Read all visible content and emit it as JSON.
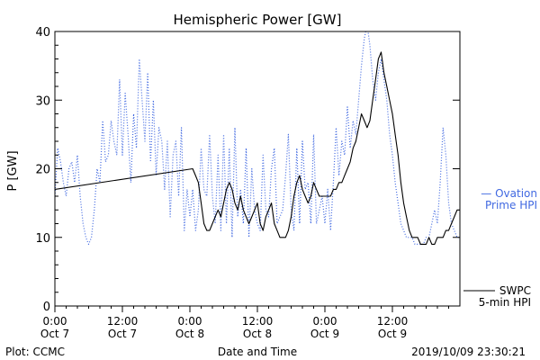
{
  "chart_data": {
    "type": "line",
    "title": "Hemispheric Power [GW]",
    "xlabel": "Date and Time",
    "ylabel": "P [GW]",
    "ylim": [
      0,
      40
    ],
    "xlim_hours": [
      0,
      72
    ],
    "x_ticks": [
      {
        "hour": 0,
        "line1": "0:00",
        "line2": "Oct 7"
      },
      {
        "hour": 12,
        "line1": "12:00",
        "line2": "Oct 7"
      },
      {
        "hour": 24,
        "line1": "0:00",
        "line2": "Oct 8"
      },
      {
        "hour": 36,
        "line1": "12:00",
        "line2": "Oct 8"
      },
      {
        "hour": 48,
        "line1": "0:00",
        "line2": "Oct 9"
      },
      {
        "hour": 60,
        "line1": "12:00",
        "line2": "Oct 9"
      }
    ],
    "y_ticks": [
      0,
      10,
      20,
      30,
      40
    ],
    "grid": false,
    "series": [
      {
        "name": "SWPC 5-min HPI",
        "legend_line1": "SWPC",
        "legend_line2": "5-min HPI",
        "color": "#000000",
        "style": "solid",
        "points": [
          [
            0,
            17
          ],
          [
            24.5,
            20
          ],
          [
            25,
            19
          ],
          [
            25.5,
            18
          ],
          [
            26,
            15
          ],
          [
            26.5,
            12
          ],
          [
            27,
            11
          ],
          [
            27.5,
            11
          ],
          [
            28,
            12
          ],
          [
            28.5,
            13
          ],
          [
            29,
            14
          ],
          [
            29.5,
            13
          ],
          [
            30,
            15
          ],
          [
            30.5,
            17
          ],
          [
            31,
            18
          ],
          [
            31.5,
            17
          ],
          [
            32,
            15
          ],
          [
            32.5,
            14
          ],
          [
            33,
            16
          ],
          [
            33.5,
            14
          ],
          [
            34,
            13
          ],
          [
            34.5,
            12
          ],
          [
            35,
            13
          ],
          [
            35.5,
            14
          ],
          [
            36,
            15
          ],
          [
            36.5,
            12
          ],
          [
            37,
            11
          ],
          [
            37.5,
            13
          ],
          [
            38,
            14
          ],
          [
            38.5,
            15
          ],
          [
            39,
            12
          ],
          [
            39.5,
            11
          ],
          [
            40,
            10
          ],
          [
            41,
            10
          ],
          [
            41.5,
            11
          ],
          [
            42,
            13
          ],
          [
            42.5,
            16
          ],
          [
            43,
            18
          ],
          [
            43.5,
            19
          ],
          [
            44,
            17
          ],
          [
            44.5,
            16
          ],
          [
            45,
            15
          ],
          [
            45.5,
            16
          ],
          [
            46,
            18
          ],
          [
            46.5,
            17
          ],
          [
            47,
            16
          ],
          [
            48,
            16
          ],
          [
            49,
            16
          ],
          [
            49.5,
            17
          ],
          [
            50,
            17
          ],
          [
            50.5,
            18
          ],
          [
            51,
            18
          ],
          [
            51.5,
            19
          ],
          [
            52,
            20
          ],
          [
            52.5,
            21
          ],
          [
            53,
            23
          ],
          [
            53.5,
            24
          ],
          [
            54,
            26
          ],
          [
            54.5,
            28
          ],
          [
            55,
            27
          ],
          [
            55.5,
            26
          ],
          [
            56,
            27
          ],
          [
            56.5,
            30
          ],
          [
            57,
            33
          ],
          [
            57.5,
            36
          ],
          [
            58,
            37
          ],
          [
            58.5,
            34
          ],
          [
            59,
            32
          ],
          [
            59.5,
            30
          ],
          [
            60,
            28
          ],
          [
            60.5,
            25
          ],
          [
            61,
            22
          ],
          [
            61.5,
            18
          ],
          [
            62,
            15
          ],
          [
            62.5,
            13
          ],
          [
            63,
            11
          ],
          [
            63.5,
            10
          ],
          [
            64,
            10
          ],
          [
            64.5,
            10
          ],
          [
            65,
            9
          ],
          [
            66,
            9
          ],
          [
            66.5,
            10
          ],
          [
            67,
            9
          ],
          [
            67.5,
            9
          ],
          [
            68,
            10
          ],
          [
            69,
            10
          ],
          [
            69.5,
            11
          ],
          [
            70,
            11
          ],
          [
            70.5,
            12
          ],
          [
            71,
            13
          ],
          [
            71.5,
            14
          ],
          [
            72,
            14
          ]
        ]
      },
      {
        "name": "Ovation Prime HPI",
        "legend_line1": "— Ovation",
        "legend_line2": "Prime HPI",
        "color": "#4169e1",
        "style": "dotted",
        "points": [
          [
            0,
            16
          ],
          [
            0.5,
            23
          ],
          [
            1,
            21
          ],
          [
            1.5,
            18
          ],
          [
            2,
            16
          ],
          [
            2.5,
            20
          ],
          [
            3,
            21
          ],
          [
            3.5,
            18
          ],
          [
            4,
            22
          ],
          [
            4.5,
            16
          ],
          [
            5,
            12
          ],
          [
            5.5,
            10
          ],
          [
            6,
            9
          ],
          [
            6.5,
            10
          ],
          [
            7,
            14
          ],
          [
            7.5,
            20
          ],
          [
            8,
            18
          ],
          [
            8.5,
            27
          ],
          [
            9,
            21
          ],
          [
            9.5,
            22
          ],
          [
            10,
            27
          ],
          [
            10.5,
            24
          ],
          [
            11,
            22
          ],
          [
            11.5,
            33
          ],
          [
            12,
            22
          ],
          [
            12.5,
            31
          ],
          [
            13,
            25
          ],
          [
            13.5,
            18
          ],
          [
            14,
            28
          ],
          [
            14.5,
            23
          ],
          [
            15,
            36
          ],
          [
            15.5,
            30
          ],
          [
            16,
            24
          ],
          [
            16.5,
            34
          ],
          [
            17,
            21
          ],
          [
            17.5,
            30
          ],
          [
            18,
            19
          ],
          [
            18.5,
            26
          ],
          [
            19,
            24
          ],
          [
            19.5,
            17
          ],
          [
            20,
            24
          ],
          [
            20.5,
            13
          ],
          [
            21,
            22
          ],
          [
            21.5,
            24
          ],
          [
            22,
            16
          ],
          [
            22.5,
            26
          ],
          [
            23,
            11
          ],
          [
            23.5,
            17
          ],
          [
            24,
            13
          ],
          [
            24.5,
            17
          ],
          [
            25,
            11
          ],
          [
            25.5,
            14
          ],
          [
            26,
            23
          ],
          [
            26.5,
            17
          ],
          [
            27,
            16
          ],
          [
            27.5,
            25
          ],
          [
            28,
            16
          ],
          [
            28.5,
            12
          ],
          [
            29,
            22
          ],
          [
            29.5,
            11
          ],
          [
            30,
            25
          ],
          [
            30.5,
            12
          ],
          [
            31,
            23
          ],
          [
            31.5,
            10
          ],
          [
            32,
            26
          ],
          [
            32.5,
            13
          ],
          [
            33,
            17
          ],
          [
            33.5,
            12
          ],
          [
            34,
            23
          ],
          [
            34.5,
            10
          ],
          [
            35,
            20
          ],
          [
            35.5,
            14
          ],
          [
            36,
            12
          ],
          [
            36.5,
            11
          ],
          [
            37,
            22
          ],
          [
            37.5,
            14
          ],
          [
            38,
            13
          ],
          [
            38.5,
            20
          ],
          [
            39,
            23
          ],
          [
            39.5,
            12
          ],
          [
            40,
            13
          ],
          [
            40.5,
            14
          ],
          [
            41,
            19
          ],
          [
            41.5,
            25
          ],
          [
            42,
            14
          ],
          [
            42.5,
            11
          ],
          [
            43,
            23
          ],
          [
            43.5,
            12
          ],
          [
            44,
            24
          ],
          [
            44.5,
            17
          ],
          [
            45,
            18
          ],
          [
            45.5,
            12
          ],
          [
            46,
            25
          ],
          [
            46.5,
            12
          ],
          [
            47,
            14
          ],
          [
            47.5,
            16
          ],
          [
            48,
            12
          ],
          [
            48.5,
            17
          ],
          [
            49,
            11
          ],
          [
            49.5,
            18
          ],
          [
            50,
            26
          ],
          [
            50.5,
            19
          ],
          [
            51,
            24
          ],
          [
            51.5,
            22
          ],
          [
            52,
            29
          ],
          [
            52.5,
            23
          ],
          [
            53,
            27
          ],
          [
            53.5,
            25
          ],
          [
            54,
            30
          ],
          [
            54.5,
            35
          ],
          [
            55,
            39
          ],
          [
            55.5,
            41
          ],
          [
            56,
            38
          ],
          [
            56.5,
            33
          ],
          [
            57,
            30
          ],
          [
            57.5,
            34
          ],
          [
            58,
            36
          ],
          [
            58.5,
            33
          ],
          [
            59,
            30
          ],
          [
            59.5,
            25
          ],
          [
            60,
            22
          ],
          [
            60.5,
            18
          ],
          [
            61,
            15
          ],
          [
            61.5,
            12
          ],
          [
            62,
            11
          ],
          [
            62.5,
            10
          ],
          [
            63,
            10
          ],
          [
            63.5,
            10
          ],
          [
            64,
            9
          ],
          [
            64.5,
            9
          ],
          [
            65,
            9
          ],
          [
            65.5,
            9
          ],
          [
            66,
            10
          ],
          [
            66.5,
            10
          ],
          [
            67,
            12
          ],
          [
            67.5,
            14
          ],
          [
            68,
            12
          ],
          [
            68.5,
            18
          ],
          [
            69,
            26
          ],
          [
            69.5,
            22
          ],
          [
            70,
            15
          ],
          [
            70.5,
            12
          ],
          [
            71,
            11
          ],
          [
            71.5,
            10
          ],
          [
            72,
            10
          ]
        ]
      }
    ]
  },
  "footer": {
    "plot_credit": "Plot: CCMC",
    "timestamp": "2019/10/09 23:30:21"
  }
}
